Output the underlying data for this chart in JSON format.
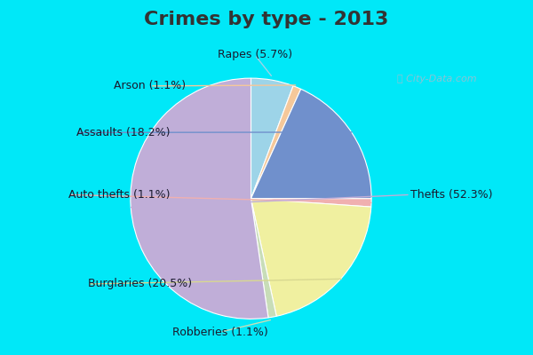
{
  "title": "Crimes by type - 2013",
  "pie_labels": [
    "Rapes",
    "Arson",
    "Assaults",
    "Auto thefts",
    "Burglaries",
    "Robberies",
    "Thefts"
  ],
  "pie_values": [
    5.7,
    1.1,
    18.2,
    1.1,
    20.5,
    1.1,
    52.3
  ],
  "pie_colors": [
    "#9dd4e8",
    "#f5c89a",
    "#7090cc",
    "#f0b0b0",
    "#f0f0a0",
    "#c8ddb8",
    "#c0aed8"
  ],
  "background_cyan": "#00e8f8",
  "background_main": "#ddf0e4",
  "title_color": "#333333",
  "title_fontsize": 16,
  "label_fontsize": 9,
  "watermark": "City-Data.com"
}
